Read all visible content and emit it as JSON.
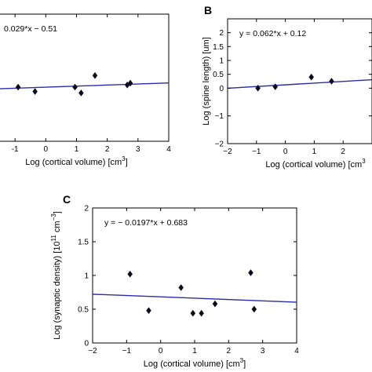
{
  "chart_data": [
    {
      "panel": "",
      "type": "scatter",
      "equation": "0.029*x − 0.51",
      "fit": {
        "slope": 0.029,
        "intercept": -0.51
      },
      "xlabel": "Log (cortical volume)  [cm",
      "xlabel_sup": "3",
      "xlabel_end": "]",
      "ylabel": "",
      "xlim": [
        -2,
        4
      ],
      "ylim": [
        -2,
        1.5
      ],
      "xticks": [
        "-1",
        "0",
        "1",
        "2",
        "3",
        "4"
      ],
      "xtick_values": [
        -1,
        0,
        1,
        2,
        3,
        4
      ],
      "yticks": [],
      "ytick_values": [],
      "points": [
        {
          "x": -0.9,
          "y": -0.51
        },
        {
          "x": -0.35,
          "y": -0.63
        },
        {
          "x": 0.95,
          "y": -0.51
        },
        {
          "x": 1.15,
          "y": -0.67
        },
        {
          "x": 1.6,
          "y": -0.19
        },
        {
          "x": 2.65,
          "y": -0.45
        },
        {
          "x": 2.75,
          "y": -0.4
        }
      ]
    },
    {
      "panel": "B",
      "type": "scatter",
      "equation": "y = 0.062*x + 0.12",
      "fit": {
        "slope": 0.062,
        "intercept": 0.12
      },
      "xlabel": "Log (cortical volume)  [cm",
      "xlabel_sup": "3",
      "xlabel_end": "",
      "ylabel": "Log (spine length)  [um]",
      "xlim": [
        -2,
        3
      ],
      "ylim": [
        -2,
        2.5
      ],
      "xticks": [
        "−2",
        "−1",
        "0",
        "1",
        "2"
      ],
      "xtick_values": [
        -2,
        -1,
        0,
        1,
        2
      ],
      "yticks": [
        "−2",
        "−1",
        "0",
        "0.5",
        "1",
        "1.5",
        "2"
      ],
      "ytick_values": [
        -2,
        -1,
        0,
        0.5,
        1,
        1.5,
        2
      ],
      "points": [
        {
          "x": -0.95,
          "y": 0.0
        },
        {
          "x": -0.35,
          "y": 0.05
        },
        {
          "x": 0.9,
          "y": 0.4
        },
        {
          "x": 1.6,
          "y": 0.25
        }
      ]
    },
    {
      "panel": "C",
      "type": "scatter",
      "equation": "y = − 0.0197*x + 0.683",
      "fit": {
        "slope": -0.0197,
        "intercept": 0.683
      },
      "xlabel": "Log (cortical volume)  [cm",
      "xlabel_sup": "3",
      "xlabel_end": "]",
      "ylabel": "Log (synaptic density)  [10",
      "ylabel_sup1": "11",
      "ylabel_mid": " cm",
      "ylabel_sup2": "−3",
      "ylabel_end": "]",
      "xlim": [
        -2,
        4
      ],
      "ylim": [
        0,
        2
      ],
      "xticks": [
        "−2",
        "−1",
        "0",
        "1",
        "2",
        "3",
        "4"
      ],
      "xtick_values": [
        -2,
        -1,
        0,
        1,
        2,
        3,
        4
      ],
      "yticks": [
        "0",
        "0.5",
        "1",
        "1.5",
        "2"
      ],
      "ytick_values": [
        0,
        0.5,
        1,
        1.5,
        2
      ],
      "points": [
        {
          "x": -0.9,
          "y": 1.02
        },
        {
          "x": -0.35,
          "y": 0.48
        },
        {
          "x": 0.6,
          "y": 0.82
        },
        {
          "x": 0.95,
          "y": 0.44
        },
        {
          "x": 1.2,
          "y": 0.44
        },
        {
          "x": 1.6,
          "y": 0.58
        },
        {
          "x": 2.65,
          "y": 1.04
        },
        {
          "x": 2.75,
          "y": 0.5
        }
      ]
    }
  ],
  "colors": {
    "fit_line": "#2b2bb0",
    "marker": "#0a0a1a",
    "axes": "#000000"
  }
}
